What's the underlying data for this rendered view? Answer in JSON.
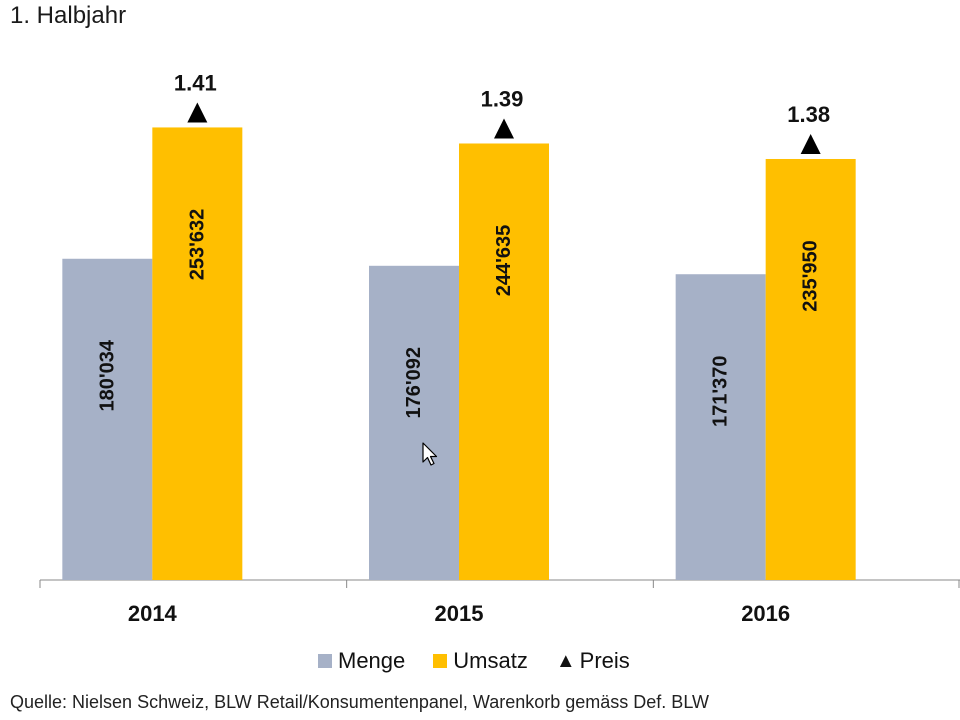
{
  "chart_data": {
    "type": "bar",
    "title": "",
    "subtitle": "1. Halbjahr",
    "categories": [
      "2014",
      "2015",
      "2016"
    ],
    "series": [
      {
        "name": "Menge",
        "values": [
          180034,
          176092,
          171370
        ],
        "labels": [
          "180'034",
          "176'092",
          "171'370"
        ],
        "color": "#a6b1c7"
      },
      {
        "name": "Umsatz",
        "values": [
          253632,
          244635,
          235950
        ],
        "labels": [
          "253'632",
          "244'635",
          "235'950"
        ],
        "color": "#ffbf00"
      }
    ],
    "markers": {
      "name": "Preis",
      "values": [
        1.41,
        1.39,
        1.38
      ],
      "labels": [
        "1.41",
        "1.39",
        "1.38"
      ],
      "symbol": "triangle",
      "color": "#000000"
    },
    "ylim": [
      0,
      255000
    ],
    "grid": false,
    "legend": "bottom",
    "xlabel": "",
    "ylabel": ""
  },
  "source_note": "Quelle: Nielsen Schweiz, BLW Retail/Konsumentenpanel, Warenkorb gemäss Def. BLW"
}
